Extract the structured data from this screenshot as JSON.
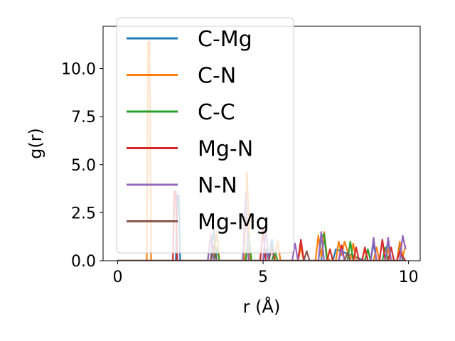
{
  "chart_data": {
    "type": "line",
    "xlabel": "r (Å)",
    "ylabel": "g(r)",
    "xlim": [
      -0.5,
      10.4
    ],
    "ylim": [
      0,
      12.2
    ],
    "xticks": [
      0,
      5,
      10
    ],
    "xtick_labels": [
      "0",
      "5",
      "10"
    ],
    "yticks": [
      0,
      2.5,
      5,
      7.5,
      10
    ],
    "ytick_labels": [
      "0.0",
      "2.5",
      "5.0",
      "7.5",
      "10.0"
    ],
    "grid": false,
    "legend": "upper-left",
    "series": [
      {
        "name": "C-Mg",
        "color": "#1f77b4",
        "x": [
          0,
          2.0,
          2.05,
          2.1,
          2.15,
          2.2,
          3.2,
          3.3,
          3.4,
          3.5,
          4.4,
          4.5,
          4.6,
          5.0,
          5.1,
          5.2,
          5.3,
          5.4,
          6.2,
          6.3,
          6.4,
          7.0,
          7.1,
          7.2,
          7.4,
          7.5,
          8.5,
          8.6,
          8.7,
          8.8,
          8.9,
          9.2,
          9.3,
          9.4,
          9.6,
          9.7,
          9.8,
          9.9
        ],
        "y": [
          0,
          0,
          3.4,
          3.4,
          0,
          0,
          0,
          1.6,
          0,
          0,
          0,
          1.3,
          0,
          0,
          0.6,
          0,
          1.1,
          0,
          0,
          0.9,
          0,
          0,
          1.3,
          0,
          0,
          0.6,
          0,
          0.6,
          0,
          0.9,
          0,
          0,
          1.0,
          0,
          0,
          0.8,
          0,
          0
        ]
      },
      {
        "name": "C-N",
        "color": "#ff7f0e",
        "x": [
          0,
          1.0,
          1.05,
          1.1,
          1.15,
          1.2,
          3.3,
          3.4,
          3.5,
          4.35,
          4.45,
          4.55,
          5.4,
          5.5,
          5.6,
          6.2,
          6.3,
          6.4,
          6.8,
          6.9,
          7.0,
          7.1,
          7.2,
          7.3,
          7.5,
          7.6,
          7.7,
          7.8,
          8.0,
          8.1,
          8.2,
          8.4,
          8.5,
          8.6,
          8.8,
          8.9,
          9.0,
          9.2,
          9.3,
          9.4,
          9.6,
          9.7,
          9.8,
          9.9
        ],
        "y": [
          0,
          0,
          11.4,
          11.4,
          0,
          0,
          0,
          1.5,
          0,
          0,
          4.6,
          0,
          0,
          1.0,
          0,
          0,
          0.7,
          0,
          0,
          1.3,
          0.2,
          1.5,
          0.2,
          0,
          0,
          1.0,
          0.3,
          1.0,
          0,
          0.9,
          0,
          0,
          0.6,
          0,
          0,
          0.7,
          0,
          0,
          0.6,
          0,
          0,
          1.0,
          0.2,
          0.8
        ]
      },
      {
        "name": "C-C",
        "color": "#2ca02c",
        "x": [
          0,
          3.3,
          3.4,
          3.5,
          4.4,
          4.5,
          4.6,
          5.3,
          5.4,
          5.5,
          6.9,
          7.0,
          7.1,
          7.2,
          7.9,
          8.0,
          8.1,
          8.5,
          8.6,
          8.7,
          9.1,
          9.2,
          9.3,
          9.9
        ],
        "y": [
          0,
          0,
          0.7,
          0,
          0,
          1.4,
          0,
          0,
          0.5,
          0,
          0,
          1.2,
          1.4,
          0,
          0,
          1.0,
          0,
          0,
          0.6,
          0,
          0,
          0.7,
          0,
          0
        ]
      },
      {
        "name": "Mg-N",
        "color": "#d62728",
        "x": [
          0,
          1.9,
          1.95,
          2.0,
          2.05,
          2.1,
          3.1,
          3.2,
          3.3,
          4.9,
          5.0,
          5.1,
          6.2,
          6.3,
          6.4,
          7.2,
          7.3,
          7.4,
          7.6,
          7.7,
          7.8,
          8.1,
          8.2,
          8.3,
          8.4,
          8.5,
          8.6,
          9.0,
          9.1,
          9.2,
          9.3,
          9.4,
          9.5,
          9.6,
          9.7,
          9.8,
          9.9
        ],
        "y": [
          0,
          0,
          3.6,
          3.6,
          0,
          0,
          0,
          1.3,
          0,
          0,
          1.6,
          0,
          0,
          1.1,
          0,
          0,
          0.6,
          0,
          0,
          0.8,
          0,
          0,
          0.7,
          0,
          0,
          0.7,
          0,
          0,
          1.1,
          0,
          0,
          0.7,
          0,
          0,
          0.5,
          0.2,
          0
        ]
      },
      {
        "name": "N-N",
        "color": "#9467bd",
        "x": [
          0,
          3.1,
          3.2,
          3.3,
          4.3,
          4.4,
          4.5,
          5.0,
          5.1,
          5.2,
          6.0,
          6.1,
          6.2,
          6.9,
          7.0,
          7.1,
          7.6,
          7.7,
          7.8,
          8.7,
          8.8,
          8.9,
          9.2,
          9.3,
          9.4,
          9.7,
          9.8,
          9.9
        ],
        "y": [
          0,
          0,
          1.4,
          0,
          0,
          3.5,
          0,
          0,
          1.7,
          0,
          0,
          0.9,
          0,
          0,
          1.5,
          0,
          0,
          0.6,
          0,
          0,
          1.2,
          0,
          0,
          1.2,
          0,
          0,
          1.3,
          0.6
        ]
      },
      {
        "name": "Mg-Mg",
        "color": "#8c564b",
        "x": [
          0,
          3.2,
          3.3,
          3.4,
          5.2,
          5.3,
          5.4,
          6.4,
          6.5,
          6.6,
          7.8,
          7.9,
          8.0,
          9.8,
          9.9
        ],
        "y": [
          0,
          0,
          0.8,
          0,
          0,
          0.7,
          0,
          0,
          0.5,
          0,
          0,
          0.4,
          0,
          0,
          0
        ]
      }
    ]
  }
}
